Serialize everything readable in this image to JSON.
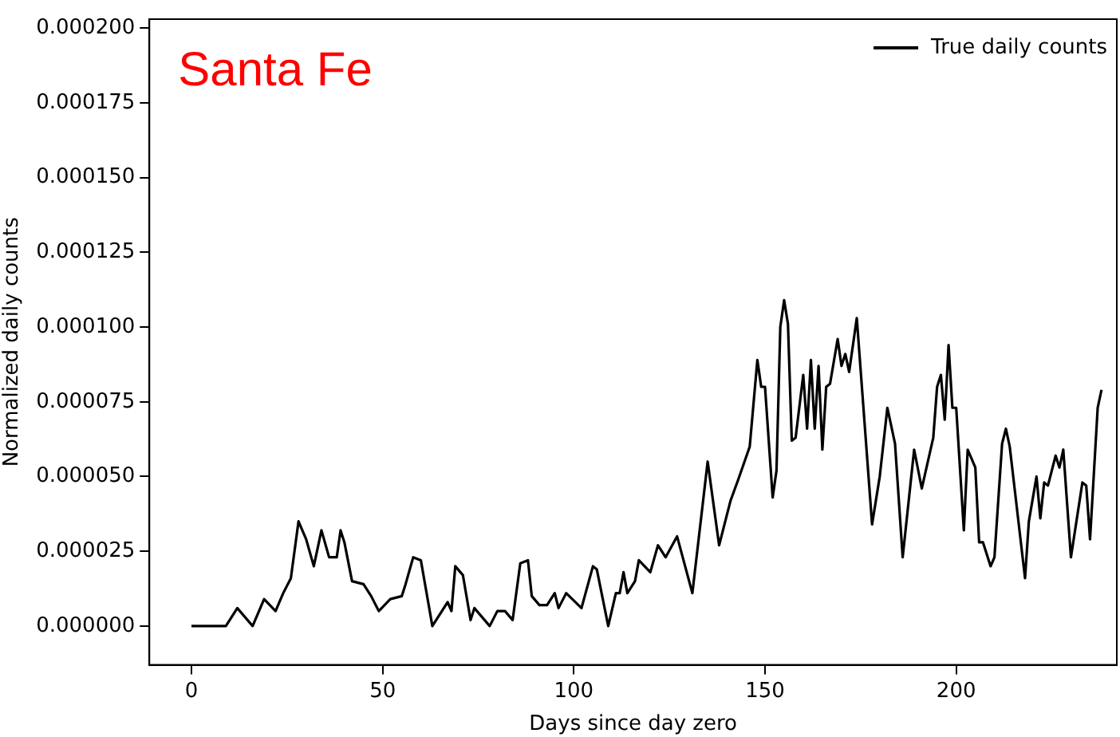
{
  "chart_data": {
    "type": "line",
    "title": "Santa Fe",
    "xlabel": "Days since day zero",
    "ylabel": "Normalized daily counts",
    "legend": "top right",
    "grid": false,
    "marker": "none",
    "line_style": "solid",
    "xlim": [
      -11,
      242
    ],
    "xticks": [
      0,
      50,
      100,
      150,
      200
    ],
    "ylim": [
      -1.3e-05,
      0.000203
    ],
    "yticks": [
      {
        "value": 0,
        "label": "0.000000"
      },
      {
        "value": 2.5e-05,
        "label": "0.000025"
      },
      {
        "value": 5e-05,
        "label": "0.000050"
      },
      {
        "value": 7.5e-05,
        "label": "0.000075"
      },
      {
        "value": 0.0001,
        "label": "0.000100"
      },
      {
        "value": 0.000125,
        "label": "0.000125"
      },
      {
        "value": 0.00015,
        "label": "0.000150"
      },
      {
        "value": 0.000175,
        "label": "0.000175"
      },
      {
        "value": 0.0002,
        "label": "0.000200"
      }
    ],
    "series": [
      {
        "name": "True daily counts",
        "color": "#000000",
        "x": [
          0,
          9,
          12,
          16,
          19,
          22,
          24,
          26,
          28,
          30,
          32,
          34,
          36,
          38,
          39,
          40,
          42,
          45,
          47,
          49,
          52,
          55,
          56,
          58,
          60,
          63,
          65,
          67,
          68,
          69,
          71,
          73,
          74,
          78,
          80,
          82,
          84,
          86,
          88,
          89,
          91,
          93,
          95,
          96,
          98,
          102,
          105,
          106,
          109,
          111,
          112,
          113,
          114,
          116,
          117,
          120,
          122,
          124,
          127,
          131,
          135,
          138,
          141,
          143,
          146,
          148,
          149,
          150,
          152,
          153,
          154,
          155,
          156,
          157,
          158,
          160,
          161,
          162,
          163,
          164,
          165,
          166,
          167,
          169,
          170,
          171,
          172,
          174,
          178,
          180,
          182,
          184,
          186,
          189,
          191,
          194,
          195,
          196,
          197,
          198,
          199,
          200,
          202,
          203,
          205,
          206,
          207,
          209,
          210,
          212,
          213,
          214,
          218,
          219,
          221,
          222,
          223,
          224,
          226,
          227,
          228,
          230,
          233,
          234,
          235,
          237,
          238
        ],
        "values": [
          0,
          0,
          6e-06,
          0,
          9e-06,
          5e-06,
          1.1e-05,
          1.6e-05,
          3.5e-05,
          2.9e-05,
          2e-05,
          3.2e-05,
          2.3e-05,
          2.3e-05,
          3.2e-05,
          2.8e-05,
          1.5e-05,
          1.4e-05,
          1e-05,
          5e-06,
          9e-06,
          1e-05,
          1.4e-05,
          2.3e-05,
          2.2e-05,
          0,
          4e-06,
          8e-06,
          5e-06,
          2e-05,
          1.7e-05,
          2e-06,
          6e-06,
          0,
          5e-06,
          5e-06,
          2e-06,
          2.1e-05,
          2.2e-05,
          1e-05,
          7e-06,
          7e-06,
          1.1e-05,
          6e-06,
          1.1e-05,
          6e-06,
          2e-05,
          1.9e-05,
          0,
          1.1e-05,
          1.1e-05,
          1.8e-05,
          1.1e-05,
          1.5e-05,
          2.2e-05,
          1.8e-05,
          2.7e-05,
          2.3e-05,
          3e-05,
          1.1e-05,
          5.5e-05,
          2.7e-05,
          4.2e-05,
          4.9e-05,
          6e-05,
          8.9e-05,
          8e-05,
          8e-05,
          4.3e-05,
          5.2e-05,
          0.0001,
          0.000109,
          0.000101,
          6.2e-05,
          6.3e-05,
          8.4e-05,
          6.6e-05,
          8.9e-05,
          6.6e-05,
          8.7e-05,
          5.9e-05,
          8e-05,
          8.1e-05,
          9.6e-05,
          8.7e-05,
          9.1e-05,
          8.5e-05,
          0.000103,
          3.4e-05,
          5e-05,
          7.3e-05,
          6.1e-05,
          2.3e-05,
          5.9e-05,
          4.6e-05,
          6.3e-05,
          8e-05,
          8.4e-05,
          6.9e-05,
          9.4e-05,
          7.3e-05,
          7.3e-05,
          3.2e-05,
          5.9e-05,
          5.3e-05,
          2.8e-05,
          2.8e-05,
          2e-05,
          2.3e-05,
          6.1e-05,
          6.6e-05,
          6e-05,
          1.6e-05,
          3.5e-05,
          5e-05,
          3.6e-05,
          4.8e-05,
          4.7e-05,
          5.7e-05,
          5.3e-05,
          5.9e-05,
          2.3e-05,
          4.8e-05,
          4.7e-05,
          2.9e-05,
          7.3e-05,
          7.9e-05
        ]
      }
    ]
  }
}
